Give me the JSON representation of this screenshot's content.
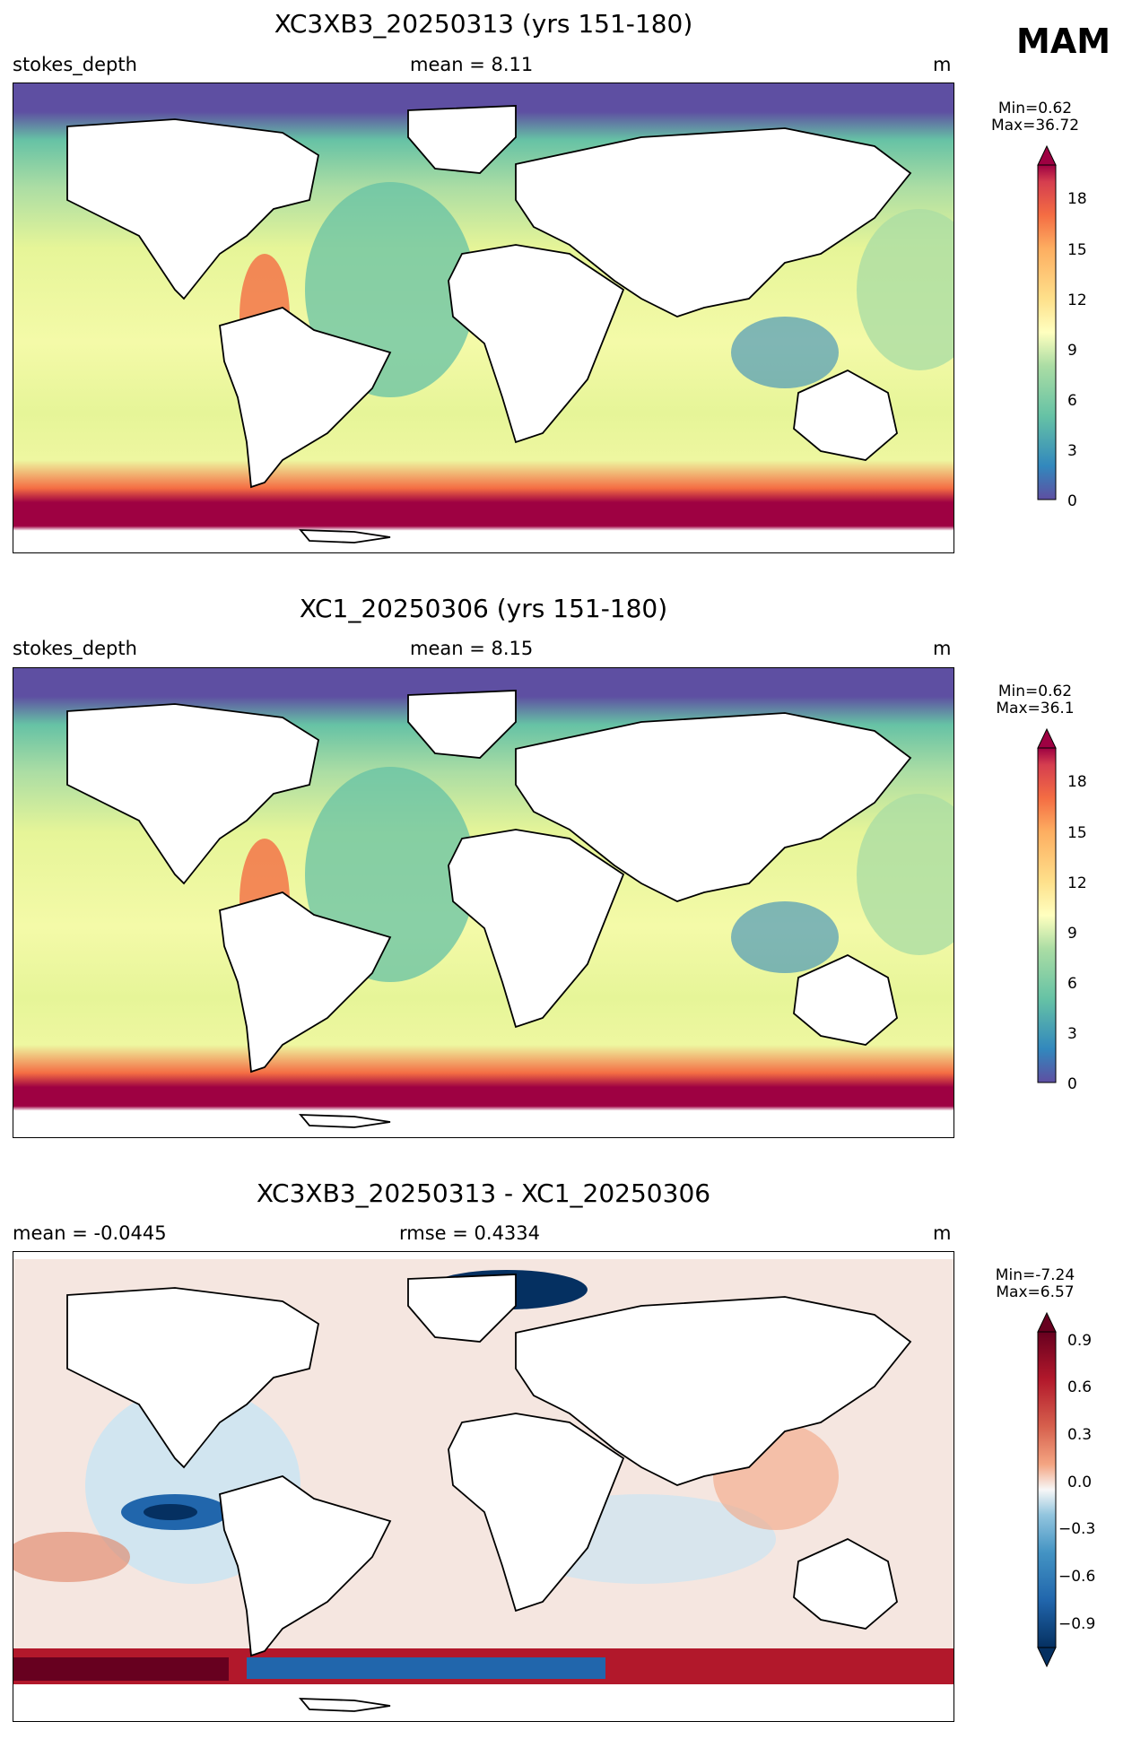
{
  "season": "MAM",
  "chart_data": [
    {
      "type": "heatmap",
      "title": "XC3XB3_20250313 (yrs 151-180)",
      "left_label": "stokes_depth",
      "center_label": "mean = 8.11",
      "units": "m",
      "min_label": "Min=0.62",
      "max_label": "Max=36.72",
      "colormap": "Spectral_r",
      "colorbar_ticks": [
        "0",
        "3",
        "6",
        "9",
        "12",
        "15",
        "18"
      ],
      "colorbar_range": [
        0,
        20
      ],
      "colorbar_extend": "max",
      "mean": 8.11,
      "min": 0.62,
      "max": 36.72
    },
    {
      "type": "heatmap",
      "title": "XC1_20250306 (yrs 151-180)",
      "left_label": "stokes_depth",
      "center_label": "mean = 8.15",
      "units": "m",
      "min_label": "Min=0.62",
      "max_label": "Max=36.1",
      "colormap": "Spectral_r",
      "colorbar_ticks": [
        "0",
        "3",
        "6",
        "9",
        "12",
        "15",
        "18"
      ],
      "colorbar_range": [
        0,
        20
      ],
      "colorbar_extend": "max",
      "mean": 8.15,
      "min": 0.62,
      "max": 36.1
    },
    {
      "type": "heatmap",
      "title": "XC3XB3_20250313 - XC1_20250306",
      "left_label": "mean = -0.0445",
      "center_label": "rmse = 0.4334",
      "units": "m",
      "min_label": "Min=-7.24",
      "max_label": "Max=6.57",
      "colormap": "RdBu_r",
      "colorbar_ticks": [
        "0.9",
        "0.6",
        "0.3",
        "0.0",
        "−0.3",
        "−0.6",
        "−0.9"
      ],
      "colorbar_range": [
        -1,
        1
      ],
      "colorbar_extend": "both",
      "mean": -0.0445,
      "rmse": 0.4334,
      "min": -7.24,
      "max": 6.57
    }
  ]
}
